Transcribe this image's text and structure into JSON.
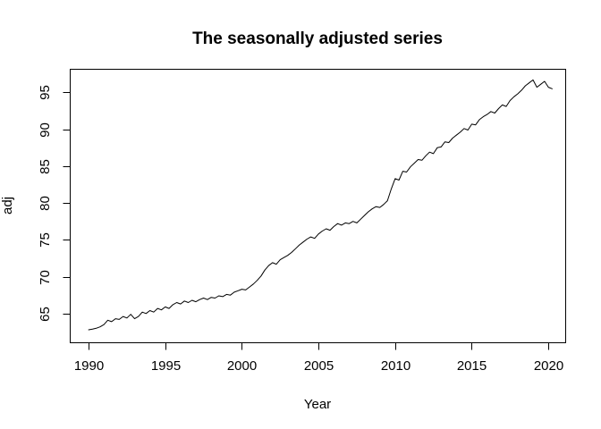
{
  "page": {
    "background": "#ffffff"
  },
  "chart_data": {
    "type": "line",
    "title": "The seasonally adjusted series",
    "xlabel": "Year",
    "ylabel": "adj",
    "x_ticks": [
      1990,
      1995,
      2000,
      2005,
      2010,
      2015,
      2020
    ],
    "x_tick_labels": [
      "1990",
      "1995",
      "2000",
      "2005",
      "2010",
      "2015",
      "2020"
    ],
    "y_ticks": [
      65,
      70,
      75,
      80,
      85,
      90,
      95
    ],
    "y_tick_labels": [
      "65",
      "70",
      "75",
      "80",
      "85",
      "90",
      "95"
    ],
    "xlim": [
      1988.77,
      2021.1
    ],
    "ylim": [
      61.1,
      98.2
    ],
    "grid": false,
    "legend": false,
    "box": true,
    "line_color": "#000000",
    "background": "#ffffff",
    "series": [
      {
        "name": "adj",
        "x_start": 1990.0,
        "x_step": 0.25,
        "x_end": 2020.25,
        "y": [
          62.8,
          62.9,
          63.0,
          63.2,
          63.5,
          64.1,
          63.9,
          64.3,
          64.2,
          64.6,
          64.4,
          64.9,
          64.3,
          64.6,
          65.2,
          65.0,
          65.4,
          65.2,
          65.7,
          65.5,
          65.9,
          65.7,
          66.2,
          66.5,
          66.3,
          66.7,
          66.5,
          66.8,
          66.6,
          66.9,
          67.1,
          66.9,
          67.2,
          67.1,
          67.4,
          67.3,
          67.6,
          67.5,
          67.9,
          68.1,
          68.3,
          68.2,
          68.6,
          69.0,
          69.5,
          70.1,
          70.9,
          71.5,
          71.9,
          71.7,
          72.3,
          72.6,
          72.9,
          73.3,
          73.8,
          74.3,
          74.7,
          75.1,
          75.4,
          75.2,
          75.8,
          76.2,
          76.5,
          76.3,
          76.8,
          77.2,
          77.0,
          77.3,
          77.2,
          77.5,
          77.3,
          77.8,
          78.3,
          78.8,
          79.2,
          79.5,
          79.4,
          79.8,
          80.3,
          81.9,
          83.3,
          83.1,
          84.3,
          84.2,
          84.9,
          85.4,
          85.9,
          85.8,
          86.4,
          86.9,
          86.7,
          87.5,
          87.6,
          88.3,
          88.2,
          88.8,
          89.2,
          89.6,
          90.1,
          89.9,
          90.7,
          90.6,
          91.3,
          91.7,
          92.0,
          92.4,
          92.2,
          92.8,
          93.3,
          93.1,
          93.9,
          94.4,
          94.8,
          95.3,
          95.9,
          96.3,
          96.7,
          95.7,
          96.1,
          96.5,
          95.7,
          95.5
        ]
      }
    ]
  }
}
